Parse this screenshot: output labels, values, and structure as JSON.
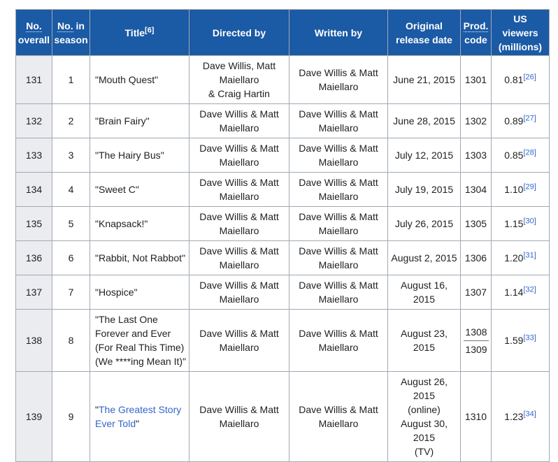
{
  "colors": {
    "header_background": "#1b5aa5",
    "header_text": "#ffffff",
    "row_header_background": "#eaecf0",
    "border": "#a2a9b1",
    "link_blue": "#3366cc",
    "body_text": "#202122"
  },
  "quote_char": "\"",
  "header": {
    "no_abbr": "No.",
    "overall": "overall",
    "in": "in",
    "season": "season",
    "title": "Title",
    "title_ref": "[6]",
    "directed_by": "Directed by",
    "written_by": "Written by",
    "original": "Original",
    "release_date": "release date",
    "prod_abbr": "Prod.",
    "code": "code",
    "us": "US",
    "viewers": "viewers",
    "millions": "(millions)"
  },
  "rows": [
    {
      "no_overall": "131",
      "no_season": "1",
      "title": "Mouth Quest",
      "title_link": false,
      "directed": "Dave Willis, Matt Maiellaro\n& Craig Hartin",
      "written": "Dave Willis & Matt Maiellaro",
      "released": "June 21, 2015",
      "prod": "1301",
      "viewers": "0.81",
      "ref": "[26]"
    },
    {
      "no_overall": "132",
      "no_season": "2",
      "title": "Brain Fairy",
      "title_link": false,
      "directed": "Dave Willis & Matt Maiellaro",
      "written": "Dave Willis & Matt Maiellaro",
      "released": "June 28, 2015",
      "prod": "1302",
      "viewers": "0.89",
      "ref": "[27]"
    },
    {
      "no_overall": "133",
      "no_season": "3",
      "title": "The Hairy Bus",
      "title_link": false,
      "directed": "Dave Willis & Matt Maiellaro",
      "written": "Dave Willis & Matt Maiellaro",
      "released": "July 12, 2015",
      "prod": "1303",
      "viewers": "0.85",
      "ref": "[28]"
    },
    {
      "no_overall": "134",
      "no_season": "4",
      "title": "Sweet C",
      "title_link": false,
      "directed": "Dave Willis & Matt Maiellaro",
      "written": "Dave Willis & Matt Maiellaro",
      "released": "July 19, 2015",
      "prod": "1304",
      "viewers": "1.10",
      "ref": "[29]"
    },
    {
      "no_overall": "135",
      "no_season": "5",
      "title": "Knapsack!",
      "title_link": false,
      "directed": "Dave Willis & Matt Maiellaro",
      "written": "Dave Willis & Matt Maiellaro",
      "released": "July 26, 2015",
      "prod": "1305",
      "viewers": "1.15",
      "ref": "[30]"
    },
    {
      "no_overall": "136",
      "no_season": "6",
      "title": "Rabbit, Not Rabbot",
      "title_link": false,
      "directed": "Dave Willis & Matt Maiellaro",
      "written": "Dave Willis & Matt Maiellaro",
      "released": "August 2, 2015",
      "prod": "1306",
      "viewers": "1.20",
      "ref": "[31]"
    },
    {
      "no_overall": "137",
      "no_season": "7",
      "title": "Hospice",
      "title_link": false,
      "directed": "Dave Willis & Matt Maiellaro",
      "written": "Dave Willis & Matt Maiellaro",
      "released": "August 16, 2015",
      "prod": "1307",
      "viewers": "1.14",
      "ref": "[32]"
    },
    {
      "no_overall": "138",
      "no_season": "8",
      "title": "The Last One Forever and Ever (For Real This Time) (We ****ing Mean It)",
      "title_link": false,
      "directed": "Dave Willis & Matt Maiellaro",
      "written": "Dave Willis & Matt Maiellaro",
      "released": "August 23, 2015",
      "prod": [
        "1308",
        "1309"
      ],
      "viewers": "1.59",
      "ref": "[33]"
    },
    {
      "no_overall": "139",
      "no_season": "9",
      "title": "The Greatest Story Ever Told",
      "title_link": true,
      "directed": "Dave Willis & Matt Maiellaro",
      "written": "Dave Willis & Matt Maiellaro",
      "released": "August 26, 2015\n(online)\nAugust 30, 2015\n(TV)",
      "prod": "1310",
      "viewers": "1.23",
      "ref": "[34]"
    }
  ]
}
